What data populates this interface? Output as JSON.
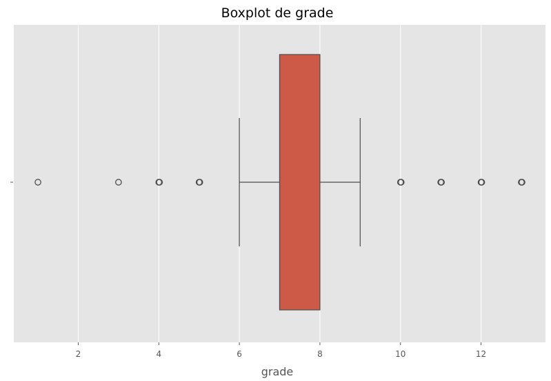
{
  "chart_data": {
    "type": "boxplot",
    "orientation": "horizontal",
    "title": "Boxplot de grade",
    "xlabel": "grade",
    "ylabel": "",
    "xlim": [
      0.4,
      13.6
    ],
    "xticks": [
      2,
      4,
      6,
      8,
      10,
      12
    ],
    "yticks": [
      ""
    ],
    "grid": true,
    "colors": {
      "background": "#E5E5E5",
      "grid": "#FFFFFF",
      "box_fill": "#CD5A47",
      "lines": "#4D4D4D"
    },
    "series": [
      {
        "q1": 7,
        "median": 7,
        "q3": 8,
        "whisker_low": 6,
        "whisker_high": 9,
        "outliers": [
          1,
          3,
          4,
          5,
          10,
          11,
          12,
          13
        ]
      }
    ]
  }
}
